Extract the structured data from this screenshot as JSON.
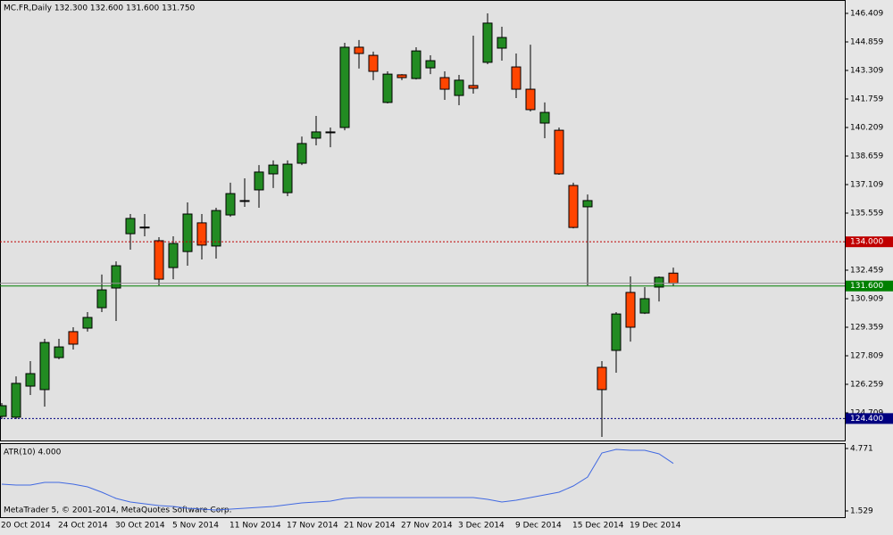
{
  "chart_data": [
    {
      "type": "candlestick",
      "title": "MC.FR,Daily  132.300 132.600 131.600 131.750",
      "categories": [
        "20 Oct 2014",
        null,
        null,
        null,
        "24 Oct 2014",
        null,
        null,
        null,
        "30 Oct 2014",
        null,
        null,
        null,
        "5 Nov 2014",
        null,
        null,
        null,
        "11 Nov 2014",
        null,
        null,
        null,
        "17 Nov 2014",
        null,
        null,
        null,
        "21 Nov 2014",
        null,
        null,
        null,
        "27 Nov 2014",
        null,
        null,
        null,
        "3 Dec 2014",
        null,
        null,
        null,
        "9 Dec 2014",
        null,
        null,
        null,
        "15 Dec 2014",
        null,
        null,
        null,
        "19 Dec 2014",
        null,
        null,
        null
      ],
      "open": [
        124.515,
        124.47,
        126.16,
        125.97,
        127.71,
        129.12,
        129.31,
        130.42,
        131.49,
        134.44,
        134.8,
        134.06,
        132.6,
        133.47,
        135.03,
        133.77,
        135.46,
        136.24,
        136.82,
        137.69,
        136.67,
        138.27,
        139.63,
        139.97,
        140.21,
        144.57,
        144.13,
        141.57,
        143.07,
        142.87,
        143.45,
        142.92,
        141.95,
        142.49,
        143.75,
        144.52,
        143.5,
        142.29,
        140.45,
        140.06,
        137.06,
        135.9,
        127.18,
        128.1,
        131.25,
        130.13,
        131.54,
        132.3
      ],
      "high": [
        125.24,
        126.69,
        127.52,
        128.73,
        128.73,
        129.36,
        130.18,
        132.22,
        132.94,
        135.51,
        135.51,
        134.25,
        134.3,
        136.14,
        135.51,
        135.85,
        137.21,
        137.45,
        138.17,
        138.42,
        138.42,
        139.72,
        140.84,
        140.21,
        144.81,
        144.96,
        144.33,
        143.26,
        143.11,
        144.57,
        144.13,
        143.26,
        143.07,
        145.2,
        146.41,
        145.68,
        144.23,
        144.71,
        141.57,
        140.21,
        137.21,
        136.57,
        127.52,
        130.18,
        132.12,
        131.54,
        132.12,
        132.6
      ],
      "low": [
        124.37,
        124.37,
        125.68,
        125.05,
        127.62,
        128.15,
        129.12,
        130.18,
        129.7,
        133.57,
        134.3,
        131.63,
        131.97,
        132.7,
        133.04,
        133.09,
        135.36,
        135.9,
        135.85,
        136.92,
        136.48,
        138.17,
        139.24,
        139.14,
        140.06,
        143.41,
        142.78,
        141.52,
        142.78,
        142.82,
        143.11,
        141.71,
        141.42,
        142.05,
        143.65,
        143.84,
        141.81,
        141.08,
        139.63,
        137.64,
        134.73,
        131.63,
        123.4,
        126.89,
        128.58,
        130.08,
        130.76,
        131.6
      ],
      "close": [
        125.096,
        126.31,
        126.84,
        128.53,
        128.29,
        128.44,
        129.89,
        131.39,
        132.7,
        135.27,
        134.8,
        131.97,
        133.91,
        135.51,
        133.82,
        135.7,
        136.62,
        136.24,
        137.79,
        138.17,
        138.22,
        139.34,
        139.97,
        139.97,
        144.57,
        144.23,
        143.26,
        143.11,
        142.92,
        144.37,
        143.84,
        142.29,
        142.78,
        142.34,
        145.88,
        145.1,
        142.29,
        141.18,
        141.03,
        137.69,
        134.78,
        136.24,
        125.97,
        130.08,
        129.36,
        130.91,
        132.07,
        131.75
      ],
      "up_color": "#228b22",
      "down_color": "#ff4500",
      "ylim": [
        123.207,
        147.136
      ],
      "yticks": [
        146.409,
        144.859,
        143.309,
        141.759,
        140.209,
        138.659,
        137.109,
        135.559,
        132.459,
        130.909,
        129.359,
        127.809,
        126.259,
        124.709
      ],
      "hlines": [
        {
          "value": 134,
          "label": "134.000",
          "color": "#c00000",
          "style": "dashed"
        },
        {
          "value": 131.6,
          "label": "131.600",
          "color": "#008000",
          "style": "solid"
        },
        {
          "value": 124.4,
          "label": "124.400",
          "color": "#000080",
          "style": "dashed"
        }
      ]
    },
    {
      "type": "line",
      "title": "ATR(10) 4.000",
      "footnote": "MetaTrader 5, © 2001-2014, MetaQuotes Software Corp.",
      "values": [
        2.919,
        2.872,
        2.872,
        3.011,
        3.011,
        2.919,
        2.78,
        2.502,
        2.178,
        1.992,
        1.9,
        1.807,
        1.761,
        1.668,
        1.622,
        1.576,
        1.622,
        1.668,
        1.715,
        1.761,
        1.853,
        1.946,
        1.992,
        2.039,
        2.178,
        2.224,
        2.224,
        2.224,
        2.224,
        2.224,
        2.224,
        2.224,
        2.224,
        2.224,
        2.131,
        1.992,
        2.085,
        2.224,
        2.363,
        2.502,
        2.826,
        3.289,
        4.539,
        4.725,
        4.678,
        4.678,
        4.493,
        4.0
      ],
      "color": "#4169e1",
      "ylim": [
        1.205,
        5.049
      ],
      "yticks": [
        4.771,
        1.529
      ]
    }
  ]
}
